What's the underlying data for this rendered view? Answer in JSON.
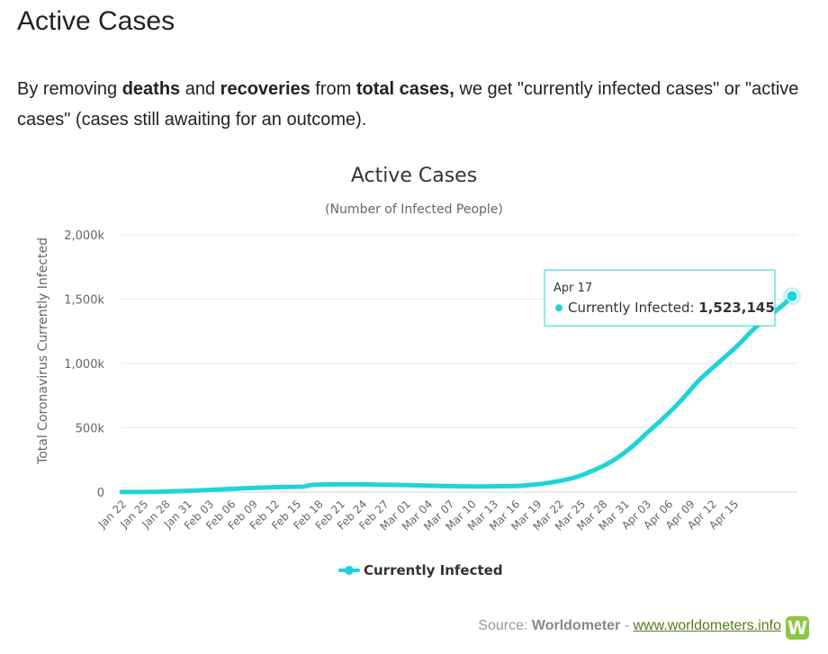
{
  "heading": "Active Cases",
  "intro": {
    "t1": "By removing ",
    "b1": "deaths",
    "t2": " and ",
    "b2": "recoveries",
    "t3": " from ",
    "b3": "total cases,",
    "t4": " we get \"currently infected cases\" or \"active cases\" (cases still awaiting for an outcome)."
  },
  "chart_data": {
    "type": "line",
    "title": "Active Cases",
    "subtitle": "(Number of Infected People)",
    "ylabel": "Total Coronavirus Currently Infected",
    "xlabel": "",
    "ylim": [
      0,
      2000000
    ],
    "yticks": [
      0,
      500000,
      1000000,
      1500000,
      2000000
    ],
    "ytick_labels": [
      "0",
      "500k",
      "1,000k",
      "1,500k",
      "2,000k"
    ],
    "x_tick_labels": [
      "Jan 22",
      "Jan 25",
      "Jan 28",
      "Jan 31",
      "Feb 03",
      "Feb 06",
      "Feb 09",
      "Feb 12",
      "Feb 15",
      "Feb 18",
      "Feb 21",
      "Feb 24",
      "Feb 27",
      "Mar 01",
      "Mar 04",
      "Mar 07",
      "Mar 10",
      "Mar 13",
      "Mar 16",
      "Mar 19",
      "Mar 22",
      "Mar 25",
      "Mar 28",
      "Mar 31",
      "Apr 03",
      "Apr 06",
      "Apr 09",
      "Apr 12",
      "Apr 15"
    ],
    "x_tick_every": 3,
    "series": [
      {
        "name": "Currently Infected",
        "color": "#1fd4d6",
        "start_date": "Jan 22",
        "values": [
          500,
          600,
          800,
          1200,
          2000,
          2800,
          4000,
          5500,
          7500,
          9500,
          11500,
          14000,
          17000,
          19500,
          22000,
          24500,
          27000,
          29500,
          32000,
          34500,
          36000,
          37500,
          39000,
          40000,
          41000,
          42000,
          55000,
          58000,
          59000,
          59500,
          60000,
          60500,
          60000,
          59500,
          59000,
          58000,
          57000,
          56000,
          55000,
          54000,
          53000,
          51500,
          50000,
          48500,
          47000,
          46000,
          45000,
          44500,
          44000,
          44000,
          44000,
          44500,
          45000,
          46000,
          47500,
          50000,
          55000,
          60000,
          67000,
          75000,
          85000,
          97000,
          110000,
          128000,
          150000,
          175000,
          200000,
          230000,
          265000,
          305000,
          350000,
          400000,
          455000,
          505000,
          555000,
          610000,
          665000,
          725000,
          790000,
          855000,
          910000,
          960000,
          1010000,
          1060000,
          1110000,
          1165000,
          1225000,
          1280000,
          1330000,
          1370000,
          1420000,
          1465000,
          1523145
        ]
      }
    ],
    "tooltip": {
      "date": "Apr 17",
      "series": "Currently Infected",
      "value_label": "1,523,145",
      "value": 1523145
    },
    "legend": "bottom-center"
  },
  "source": {
    "prefix": "Source: ",
    "name": "Worldometer",
    "sep": " - ",
    "link": "www.worldometers.info",
    "logo": "W"
  }
}
